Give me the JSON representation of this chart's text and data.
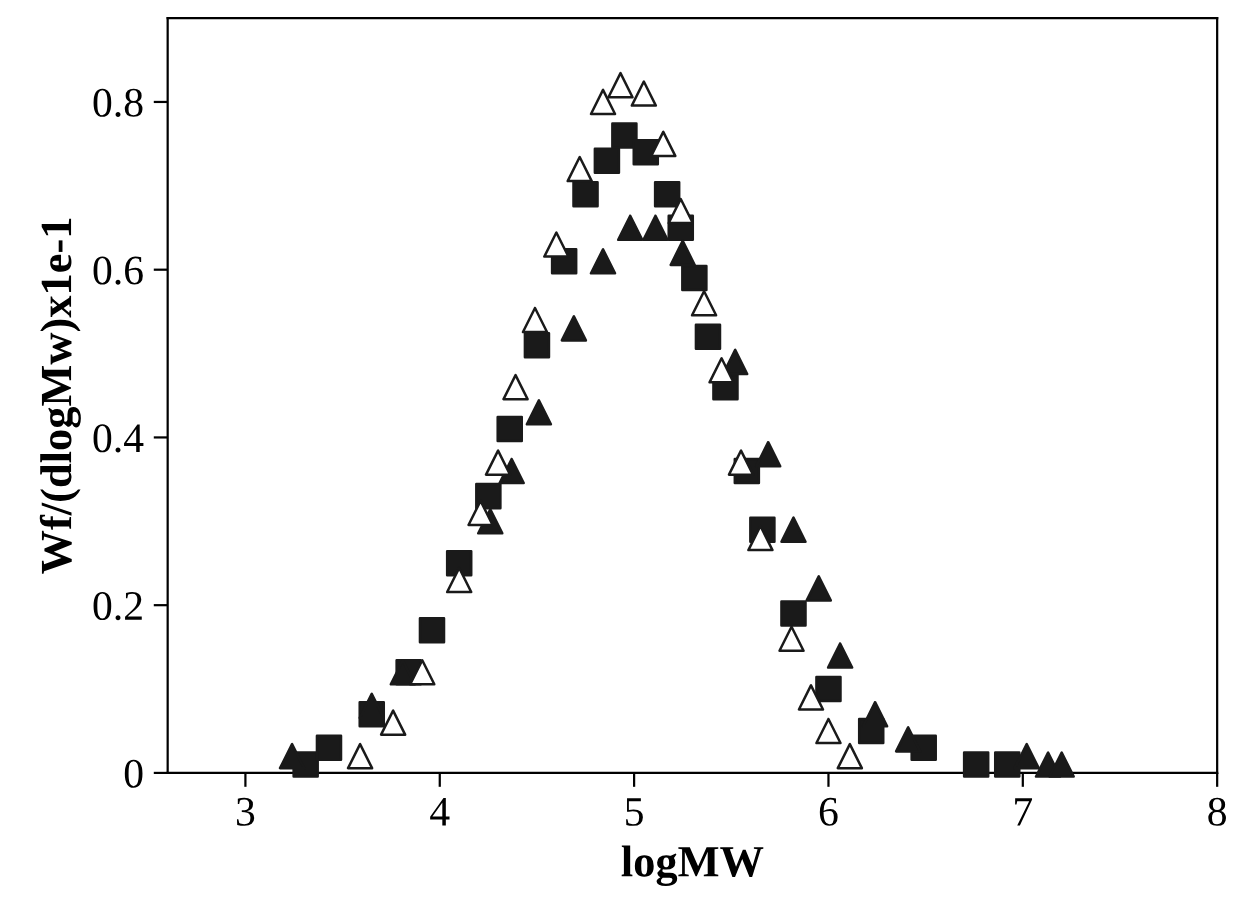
{
  "chart_data": {
    "type": "scatter",
    "xlabel": "logMW",
    "ylabel": "Wf/(dlogMw)x1e-1",
    "xlim": [
      2.6,
      8
    ],
    "xticks": [
      3,
      4,
      5,
      6,
      7,
      8
    ],
    "ylim": [
      0,
      0.9
    ],
    "yticks": [
      0,
      0.2,
      0.4,
      0.6,
      0.8
    ],
    "grid": false,
    "legend": false,
    "series": [
      {
        "marker": "square",
        "color": "#1a1a1a",
        "x": [
          3.31,
          3.43,
          3.65,
          3.84,
          3.96,
          4.1,
          4.25,
          4.36,
          4.5,
          4.64,
          4.75,
          4.86,
          4.95,
          5.06,
          5.17,
          5.24,
          5.31,
          5.38,
          5.47,
          5.58,
          5.66,
          5.82,
          6.0,
          6.22,
          6.49,
          6.76,
          6.92
        ],
        "values": [
          0.01,
          0.03,
          0.07,
          0.12,
          0.17,
          0.25,
          0.33,
          0.41,
          0.51,
          0.61,
          0.69,
          0.73,
          0.76,
          0.74,
          0.69,
          0.65,
          0.59,
          0.52,
          0.46,
          0.36,
          0.29,
          0.19,
          0.1,
          0.05,
          0.03,
          0.01,
          0.01
        ]
      },
      {
        "marker": "triangle",
        "color": "#1a1a1a",
        "x": [
          3.24,
          3.65,
          3.81,
          4.26,
          4.37,
          4.51,
          4.69,
          4.84,
          4.98,
          5.11,
          5.25,
          5.52,
          5.69,
          5.82,
          5.95,
          6.06,
          6.24,
          6.41,
          7.02,
          7.13,
          7.2
        ],
        "values": [
          0.02,
          0.08,
          0.12,
          0.3,
          0.36,
          0.43,
          0.53,
          0.61,
          0.65,
          0.65,
          0.62,
          0.49,
          0.38,
          0.29,
          0.22,
          0.14,
          0.07,
          0.04,
          0.02,
          0.01,
          0.01
        ]
      },
      {
        "marker": "triangle",
        "color": "#ffffff",
        "x": [
          3.59,
          3.76,
          3.91,
          4.1,
          4.21,
          4.3,
          4.39,
          4.49,
          4.6,
          4.72,
          4.84,
          4.93,
          5.05,
          5.15,
          5.24,
          5.36,
          5.45,
          5.55,
          5.65,
          5.81,
          5.91,
          6.0,
          6.11
        ],
        "values": [
          0.02,
          0.06,
          0.12,
          0.23,
          0.31,
          0.37,
          0.46,
          0.54,
          0.63,
          0.72,
          0.8,
          0.82,
          0.81,
          0.75,
          0.67,
          0.56,
          0.48,
          0.37,
          0.28,
          0.16,
          0.09,
          0.05,
          0.02
        ]
      }
    ]
  }
}
